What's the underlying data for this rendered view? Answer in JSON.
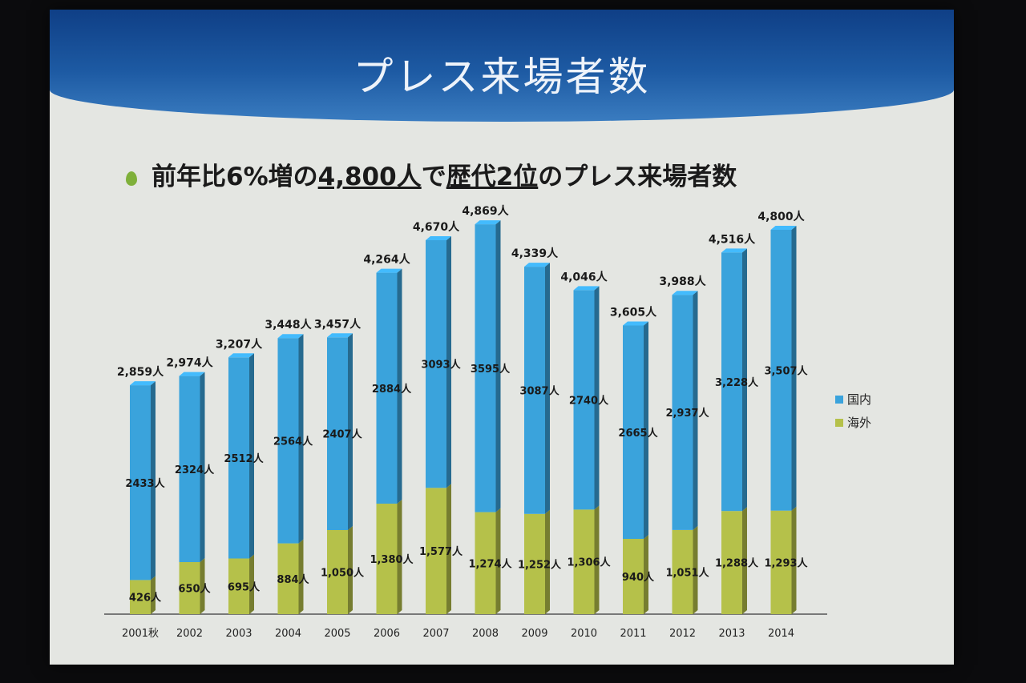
{
  "slide": {
    "title": "プレス来場者数",
    "headline_parts": [
      "前年比6%増の",
      "4,800人",
      "で",
      "歴代2位",
      "のプレス来場者数"
    ],
    "bullet_color": "#7fb03a"
  },
  "chart_data": {
    "type": "bar",
    "stacked": true,
    "categories": [
      "2001秋",
      "2002",
      "2003",
      "2004",
      "2005",
      "2006",
      "2007",
      "2008",
      "2009",
      "2010",
      "2011",
      "2012",
      "2013",
      "2014"
    ],
    "series": [
      {
        "name": "海外",
        "color": "#b5c14a",
        "values": [
          426,
          650,
          695,
          884,
          1050,
          1380,
          1577,
          1274,
          1252,
          1306,
          940,
          1051,
          1288,
          1293
        ],
        "labels": [
          "426人",
          "650人",
          "695人",
          "884人",
          "1,050人",
          "1,380人",
          "1,577人",
          "1,274人",
          "1,252人",
          "1,306人",
          "940人",
          "1,051人",
          "1,288人",
          "1,293人"
        ]
      },
      {
        "name": "国内",
        "color": "#3aa3dc",
        "values": [
          2433,
          2324,
          2512,
          2564,
          2407,
          2884,
          3093,
          3595,
          3087,
          2740,
          2665,
          2937,
          3228,
          3507
        ],
        "labels": [
          "2433人",
          "2324人",
          "2512人",
          "2564人",
          "2407人",
          "2884人",
          "3093人",
          "3595人",
          "3087人",
          "2740人",
          "2665人",
          "2,937人",
          "3,228人",
          "3,507人"
        ]
      }
    ],
    "totals": [
      2859,
      2974,
      3207,
      3448,
      3457,
      4264,
      4670,
      4869,
      4339,
      4046,
      3605,
      3988,
      4516,
      4800
    ],
    "total_labels": [
      "2,859人",
      "2,974人",
      "3,207人",
      "3,448人",
      "3,457人",
      "4,264人",
      "4,670人",
      "4,869人",
      "4,339人",
      "4,046人",
      "3,605人",
      "3,988人",
      "4,516人",
      "4,800人"
    ],
    "highlight_category": "2014",
    "highlight_color": "#c0121c",
    "legend": [
      "国内",
      "海外"
    ],
    "legend_position": "right",
    "grid": false,
    "ylim": [
      0,
      5000
    ]
  }
}
